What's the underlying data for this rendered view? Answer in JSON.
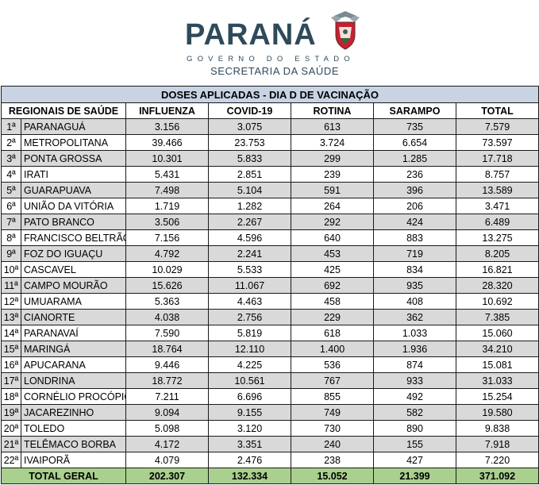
{
  "header": {
    "brand_title": "PARANÁ",
    "brand_subtitle": "GOVERNO DO ESTADO",
    "brand_secretaria": "SECRETARIA DA SAÚDE",
    "crest_icon": "parana-crest-icon"
  },
  "table": {
    "title": "DOSES APLICADAS - DIA D DE VACINAÇÃO",
    "columns": [
      "REGIONAIS DE SAÚDE",
      "INFLUENZA",
      "COVID-19",
      "ROTINA",
      "SARAMPO",
      "TOTAL"
    ],
    "rows": [
      {
        "idx": "1ª",
        "regional": "PARANAGUÁ",
        "influenza": "3.156",
        "covid": "3.075",
        "rotina": "613",
        "sarampo": "735",
        "total": "7.579"
      },
      {
        "idx": "2ª",
        "regional": "METROPOLITANA",
        "influenza": "39.466",
        "covid": "23.753",
        "rotina": "3.724",
        "sarampo": "6.654",
        "total": "73.597"
      },
      {
        "idx": "3ª",
        "regional": "PONTA GROSSA",
        "influenza": "10.301",
        "covid": "5.833",
        "rotina": "299",
        "sarampo": "1.285",
        "total": "17.718"
      },
      {
        "idx": "4ª",
        "regional": "IRATI",
        "influenza": "5.431",
        "covid": "2.851",
        "rotina": "239",
        "sarampo": "236",
        "total": "8.757"
      },
      {
        "idx": "5ª",
        "regional": "GUARAPUAVA",
        "influenza": "7.498",
        "covid": "5.104",
        "rotina": "591",
        "sarampo": "396",
        "total": "13.589"
      },
      {
        "idx": "6ª",
        "regional": "UNIÃO DA VITÓRIA",
        "influenza": "1.719",
        "covid": "1.282",
        "rotina": "264",
        "sarampo": "206",
        "total": "3.471"
      },
      {
        "idx": "7ª",
        "regional": "PATO BRANCO",
        "influenza": "3.506",
        "covid": "2.267",
        "rotina": "292",
        "sarampo": "424",
        "total": "6.489"
      },
      {
        "idx": "8ª",
        "regional": "FRANCISCO BELTRÃO",
        "influenza": "7.156",
        "covid": "4.596",
        "rotina": "640",
        "sarampo": "883",
        "total": "13.275"
      },
      {
        "idx": "9ª",
        "regional": "FOZ DO IGUAÇU",
        "influenza": "4.792",
        "covid": "2.241",
        "rotina": "453",
        "sarampo": "719",
        "total": "8.205"
      },
      {
        "idx": "10ª",
        "regional": "CASCAVEL",
        "influenza": "10.029",
        "covid": "5.533",
        "rotina": "425",
        "sarampo": "834",
        "total": "16.821"
      },
      {
        "idx": "11ª",
        "regional": "CAMPO MOURÃO",
        "influenza": "15.626",
        "covid": "11.067",
        "rotina": "692",
        "sarampo": "935",
        "total": "28.320"
      },
      {
        "idx": "12ª",
        "regional": "UMUARAMA",
        "influenza": "5.363",
        "covid": "4.463",
        "rotina": "458",
        "sarampo": "408",
        "total": "10.692"
      },
      {
        "idx": "13ª",
        "regional": "CIANORTE",
        "influenza": "4.038",
        "covid": "2.756",
        "rotina": "229",
        "sarampo": "362",
        "total": "7.385"
      },
      {
        "idx": "14ª",
        "regional": "PARANAVAÍ",
        "influenza": "7.590",
        "covid": "5.819",
        "rotina": "618",
        "sarampo": "1.033",
        "total": "15.060"
      },
      {
        "idx": "15ª",
        "regional": "MARINGÁ",
        "influenza": "18.764",
        "covid": "12.110",
        "rotina": "1.400",
        "sarampo": "1.936",
        "total": "34.210"
      },
      {
        "idx": "16ª",
        "regional": "APUCARANA",
        "influenza": "9.446",
        "covid": "4.225",
        "rotina": "536",
        "sarampo": "874",
        "total": "15.081"
      },
      {
        "idx": "17ª",
        "regional": "LONDRINA",
        "influenza": "18.772",
        "covid": "10.561",
        "rotina": "767",
        "sarampo": "933",
        "total": "31.033"
      },
      {
        "idx": "18ª",
        "regional": "CORNÉLIO PROCÓPIO",
        "influenza": "7.211",
        "covid": "6.696",
        "rotina": "855",
        "sarampo": "492",
        "total": "15.254"
      },
      {
        "idx": "19ª",
        "regional": "JACAREZINHO",
        "influenza": "9.094",
        "covid": "9.155",
        "rotina": "749",
        "sarampo": "582",
        "total": "19.580"
      },
      {
        "idx": "20ª",
        "regional": "TOLEDO",
        "influenza": "5.098",
        "covid": "3.120",
        "rotina": "730",
        "sarampo": "890",
        "total": "9.838"
      },
      {
        "idx": "21ª",
        "regional": "TELÊMACO BORBA",
        "influenza": "4.172",
        "covid": "3.351",
        "rotina": "240",
        "sarampo": "155",
        "total": "7.918"
      },
      {
        "idx": "22ª",
        "regional": "IVAIPORÃ",
        "influenza": "4.079",
        "covid": "2.476",
        "rotina": "238",
        "sarampo": "427",
        "total": "7.220"
      }
    ],
    "total": {
      "label": "TOTAL GERAL",
      "influenza": "202.307",
      "covid": "132.334",
      "rotina": "15.052",
      "sarampo": "21.399",
      "total": "371.092"
    }
  },
  "colors": {
    "title_bg": "#c8d3e3",
    "grey_row": "#d9d9d9",
    "total_row": "#a9d08e",
    "brand": "#2f4a5a",
    "crest_red": "#c8202f"
  }
}
